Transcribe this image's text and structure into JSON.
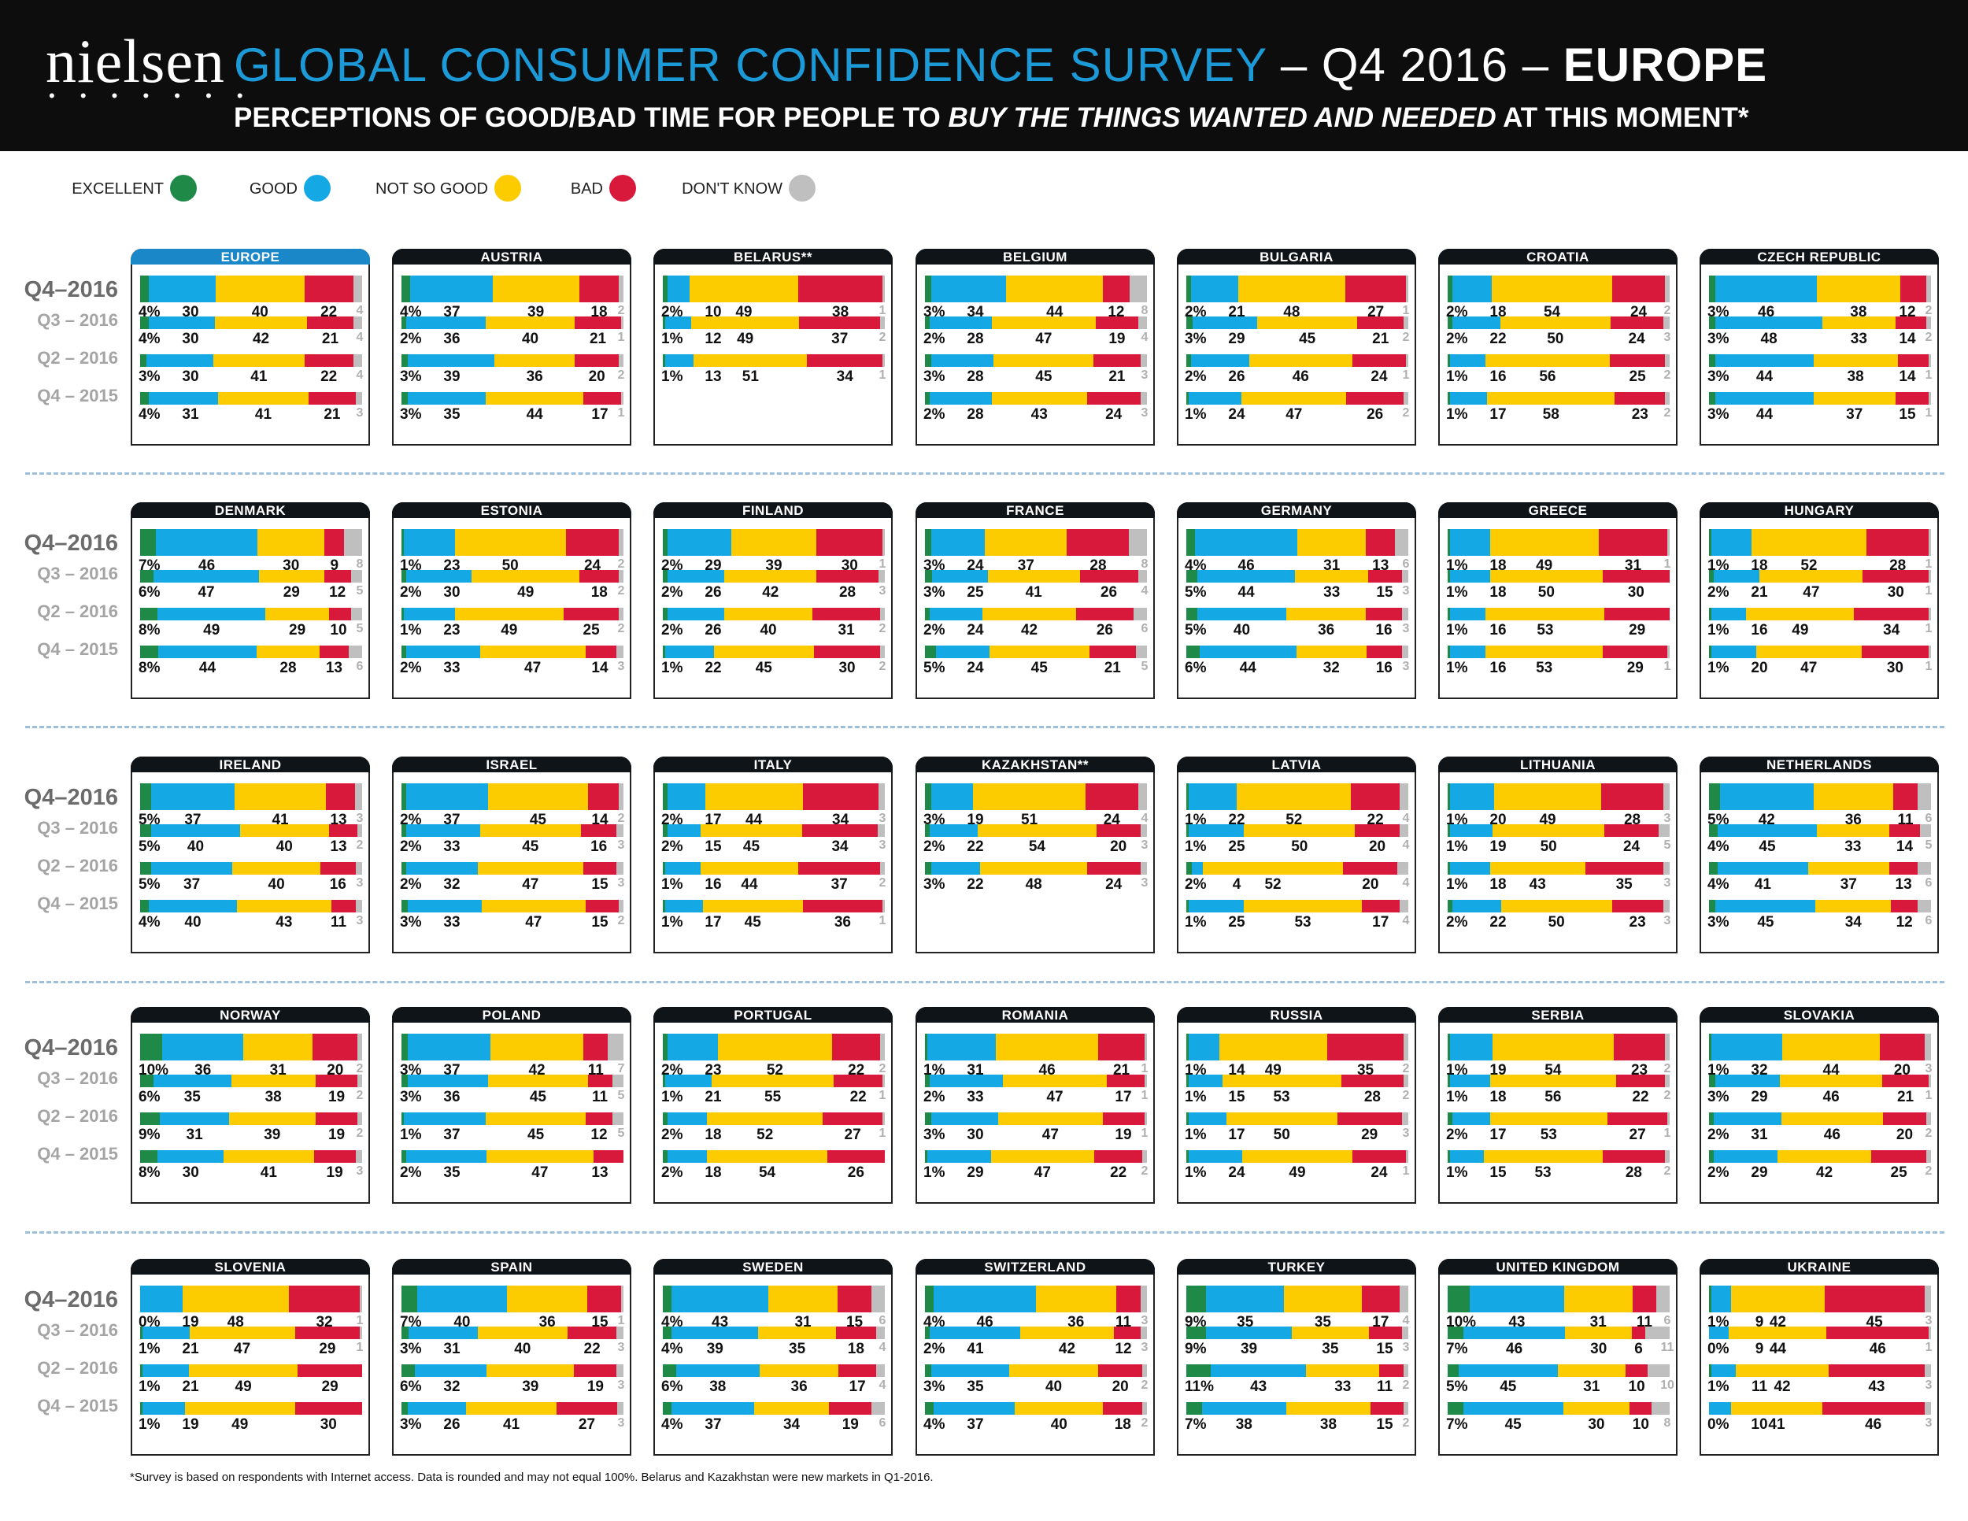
{
  "header": {
    "logo": "nielsen",
    "logo_dots": "• • • • • • •",
    "title_blue": "GLOBAL CONSUMER CONFIDENCE SURVEY",
    "title_mid": " – Q4 2016 – ",
    "title_bold": "EUROPE",
    "subtitle_a": "PERCEPTIONS OF GOOD/BAD TIME FOR PEOPLE TO ",
    "subtitle_italic": "BUY THE THINGS WANTED AND NEEDED",
    "subtitle_b": " AT THIS MOMENT*"
  },
  "legend": [
    {
      "label": "EXCELLENT",
      "color": "#1f8a48"
    },
    {
      "label": "GOOD",
      "color": "#14a8e4"
    },
    {
      "label": "NOT SO GOOD",
      "color": "#fccb00"
    },
    {
      "label": "BAD",
      "color": "#d8193c"
    },
    {
      "label": "DON'T KNOW",
      "color": "#bfbfbf"
    }
  ],
  "period_labels": [
    "Q4–2016",
    "Q3 – 2016",
    "Q2 – 2016",
    "Q4 – 2015"
  ],
  "footnote": "*Survey is based on respondents with Internet access. Data is rounded and may not equal 100%. Belarus and Kazakhstan were new markets in Q1-2016.",
  "chart_data": {
    "type": "bar",
    "subtype": "stacked-horizontal-small-multiples",
    "title": "GLOBAL CONSUMER CONFIDENCE SURVEY – Q4 2016 – EUROPE",
    "subtitle": "PERCEPTIONS OF GOOD/BAD TIME FOR PEOPLE TO BUY THE THINGS WANTED AND NEEDED AT THIS MOMENT*",
    "series_names": [
      "EXCELLENT",
      "GOOD",
      "NOT SO GOOD",
      "BAD",
      "DON'T KNOW"
    ],
    "periods": [
      "Q4–2016",
      "Q3 – 2016",
      "Q2 – 2016",
      "Q4 – 2015"
    ],
    "unit": "%",
    "panels": [
      {
        "name": "EUROPE",
        "highlight": true,
        "rows": [
          [
            4,
            30,
            40,
            22,
            4
          ],
          [
            4,
            30,
            42,
            21,
            4
          ],
          [
            3,
            30,
            41,
            22,
            4
          ],
          [
            4,
            31,
            41,
            21,
            3
          ]
        ]
      },
      {
        "name": "AUSTRIA",
        "rows": [
          [
            4,
            37,
            39,
            18,
            2
          ],
          [
            2,
            36,
            40,
            21,
            1
          ],
          [
            3,
            39,
            36,
            20,
            2
          ],
          [
            3,
            35,
            44,
            17,
            1
          ]
        ]
      },
      {
        "name": "BELARUS**",
        "rows": [
          [
            2,
            10,
            49,
            38,
            1
          ],
          [
            1,
            12,
            49,
            37,
            2
          ],
          [
            1,
            13,
            51,
            34,
            1
          ]
        ]
      },
      {
        "name": "BELGIUM",
        "rows": [
          [
            3,
            34,
            44,
            12,
            8
          ],
          [
            2,
            28,
            47,
            19,
            4
          ],
          [
            3,
            28,
            45,
            21,
            3
          ],
          [
            2,
            28,
            43,
            24,
            3
          ]
        ]
      },
      {
        "name": "BULGARIA",
        "rows": [
          [
            2,
            21,
            48,
            27,
            1
          ],
          [
            3,
            29,
            45,
            21,
            2
          ],
          [
            2,
            26,
            46,
            24,
            1
          ],
          [
            1,
            24,
            47,
            26,
            2
          ]
        ]
      },
      {
        "name": "CROATIA",
        "rows": [
          [
            2,
            18,
            54,
            24,
            2
          ],
          [
            2,
            22,
            50,
            24,
            3
          ],
          [
            1,
            16,
            56,
            25,
            2
          ],
          [
            1,
            17,
            58,
            23,
            2
          ]
        ]
      },
      {
        "name": "CZECH REPUBLIC",
        "rows": [
          [
            3,
            46,
            38,
            12,
            2
          ],
          [
            3,
            48,
            33,
            14,
            2
          ],
          [
            3,
            44,
            38,
            14,
            1
          ],
          [
            3,
            44,
            37,
            15,
            1
          ]
        ]
      },
      {
        "name": "DENMARK",
        "rows": [
          [
            7,
            46,
            30,
            9,
            8
          ],
          [
            6,
            47,
            29,
            12,
            5
          ],
          [
            8,
            49,
            29,
            10,
            5
          ],
          [
            8,
            44,
            28,
            13,
            6
          ]
        ]
      },
      {
        "name": "ESTONIA",
        "rows": [
          [
            1,
            23,
            50,
            24,
            2
          ],
          [
            2,
            30,
            49,
            18,
            2
          ],
          [
            1,
            23,
            49,
            25,
            2
          ],
          [
            2,
            33,
            47,
            14,
            3
          ]
        ]
      },
      {
        "name": "FINLAND",
        "rows": [
          [
            2,
            29,
            39,
            30,
            1
          ],
          [
            2,
            26,
            42,
            28,
            3
          ],
          [
            2,
            26,
            40,
            31,
            2
          ],
          [
            1,
            22,
            45,
            30,
            2
          ]
        ]
      },
      {
        "name": "FRANCE",
        "rows": [
          [
            3,
            24,
            37,
            28,
            8
          ],
          [
            3,
            25,
            41,
            26,
            4
          ],
          [
            2,
            24,
            42,
            26,
            6
          ],
          [
            5,
            24,
            45,
            21,
            5
          ]
        ]
      },
      {
        "name": "GERMANY",
        "rows": [
          [
            4,
            46,
            31,
            13,
            6
          ],
          [
            5,
            44,
            33,
            15,
            3
          ],
          [
            5,
            40,
            36,
            16,
            3
          ],
          [
            6,
            44,
            32,
            16,
            3
          ]
        ]
      },
      {
        "name": "GREECE",
        "rows": [
          [
            1,
            18,
            49,
            31,
            1
          ],
          [
            1,
            18,
            50,
            30,
            0
          ],
          [
            1,
            16,
            53,
            29,
            0
          ],
          [
            1,
            16,
            53,
            29,
            1
          ]
        ]
      },
      {
        "name": "HUNGARY",
        "rows": [
          [
            1,
            18,
            52,
            28,
            1
          ],
          [
            2,
            21,
            47,
            30,
            1
          ],
          [
            1,
            16,
            49,
            34,
            1
          ],
          [
            1,
            20,
            47,
            30,
            1
          ]
        ]
      },
      {
        "name": "IRELAND",
        "rows": [
          [
            5,
            37,
            41,
            13,
            3
          ],
          [
            5,
            40,
            40,
            13,
            2
          ],
          [
            5,
            37,
            40,
            16,
            3
          ],
          [
            4,
            40,
            43,
            11,
            3
          ]
        ]
      },
      {
        "name": "ISRAEL",
        "rows": [
          [
            2,
            37,
            45,
            14,
            2
          ],
          [
            2,
            33,
            45,
            16,
            3
          ],
          [
            2,
            32,
            47,
            15,
            3
          ],
          [
            3,
            33,
            47,
            15,
            2
          ]
        ]
      },
      {
        "name": "ITALY",
        "rows": [
          [
            2,
            17,
            44,
            34,
            3
          ],
          [
            2,
            15,
            45,
            34,
            3
          ],
          [
            1,
            16,
            44,
            37,
            2
          ],
          [
            1,
            17,
            45,
            36,
            1
          ]
        ]
      },
      {
        "name": "KAZAKHSTAN**",
        "rows": [
          [
            3,
            19,
            51,
            24,
            4
          ],
          [
            2,
            22,
            54,
            20,
            3
          ],
          [
            3,
            22,
            48,
            24,
            3
          ]
        ]
      },
      {
        "name": "LATVIA",
        "rows": [
          [
            1,
            22,
            52,
            22,
            4
          ],
          [
            1,
            25,
            50,
            20,
            4
          ],
          [
            2,
            4,
            52,
            20,
            4
          ],
          [
            1,
            25,
            53,
            17,
            4
          ]
        ]
      },
      {
        "name": "LITHUANIA",
        "rows": [
          [
            1,
            20,
            49,
            28,
            3
          ],
          [
            1,
            19,
            50,
            24,
            5
          ],
          [
            1,
            18,
            43,
            35,
            3
          ],
          [
            2,
            22,
            50,
            23,
            3
          ]
        ]
      },
      {
        "name": "NETHERLANDS",
        "rows": [
          [
            5,
            42,
            36,
            11,
            6
          ],
          [
            4,
            45,
            33,
            14,
            5
          ],
          [
            4,
            41,
            37,
            13,
            6
          ],
          [
            3,
            45,
            34,
            12,
            6
          ]
        ]
      },
      {
        "name": "NORWAY",
        "rows": [
          [
            10,
            36,
            31,
            20,
            2
          ],
          [
            6,
            35,
            38,
            19,
            2
          ],
          [
            9,
            31,
            39,
            19,
            2
          ],
          [
            8,
            30,
            41,
            19,
            3
          ]
        ]
      },
      {
        "name": "POLAND",
        "rows": [
          [
            3,
            37,
            42,
            11,
            7
          ],
          [
            3,
            36,
            45,
            11,
            5
          ],
          [
            1,
            37,
            45,
            12,
            5
          ],
          [
            2,
            35,
            47,
            13,
            0
          ]
        ]
      },
      {
        "name": "PORTUGAL",
        "rows": [
          [
            2,
            23,
            52,
            22,
            2
          ],
          [
            1,
            21,
            55,
            22,
            1
          ],
          [
            2,
            18,
            52,
            27,
            1
          ],
          [
            2,
            18,
            54,
            26,
            0
          ]
        ]
      },
      {
        "name": "ROMANIA",
        "rows": [
          [
            1,
            31,
            46,
            21,
            1
          ],
          [
            2,
            33,
            47,
            17,
            1
          ],
          [
            3,
            30,
            47,
            19,
            1
          ],
          [
            1,
            29,
            47,
            22,
            2
          ]
        ]
      },
      {
        "name": "RUSSIA",
        "rows": [
          [
            1,
            14,
            49,
            35,
            2
          ],
          [
            1,
            15,
            53,
            28,
            2
          ],
          [
            1,
            17,
            50,
            29,
            3
          ],
          [
            1,
            24,
            49,
            24,
            1
          ]
        ]
      },
      {
        "name": "SERBIA",
        "rows": [
          [
            1,
            19,
            54,
            23,
            2
          ],
          [
            1,
            18,
            56,
            22,
            2
          ],
          [
            2,
            17,
            53,
            27,
            1
          ],
          [
            1,
            15,
            53,
            28,
            2
          ]
        ]
      },
      {
        "name": "SLOVAKIA",
        "rows": [
          [
            1,
            32,
            44,
            20,
            3
          ],
          [
            3,
            29,
            46,
            21,
            1
          ],
          [
            2,
            31,
            46,
            20,
            2
          ],
          [
            2,
            29,
            42,
            25,
            2
          ]
        ]
      },
      {
        "name": "SLOVENIA",
        "rows": [
          [
            0,
            19,
            48,
            32,
            1
          ],
          [
            1,
            21,
            47,
            29,
            1
          ],
          [
            1,
            21,
            49,
            29,
            0
          ],
          [
            1,
            19,
            49,
            30,
            0
          ]
        ]
      },
      {
        "name": "SPAIN",
        "rows": [
          [
            7,
            40,
            36,
            15,
            1
          ],
          [
            3,
            31,
            40,
            22,
            3
          ],
          [
            6,
            32,
            39,
            19,
            3
          ],
          [
            3,
            26,
            41,
            27,
            3
          ]
        ]
      },
      {
        "name": "SWEDEN",
        "rows": [
          [
            4,
            43,
            31,
            15,
            6
          ],
          [
            4,
            39,
            35,
            18,
            4
          ],
          [
            6,
            38,
            36,
            17,
            4
          ],
          [
            4,
            37,
            34,
            19,
            6
          ]
        ]
      },
      {
        "name": "SWITZERLAND",
        "rows": [
          [
            4,
            46,
            36,
            11,
            3
          ],
          [
            2,
            41,
            42,
            12,
            3
          ],
          [
            3,
            35,
            40,
            20,
            2
          ],
          [
            4,
            37,
            40,
            18,
            2
          ]
        ]
      },
      {
        "name": "TURKEY",
        "rows": [
          [
            9,
            35,
            35,
            17,
            4
          ],
          [
            9,
            39,
            35,
            15,
            3
          ],
          [
            11,
            43,
            33,
            11,
            2
          ],
          [
            7,
            38,
            38,
            15,
            2
          ]
        ]
      },
      {
        "name": "UNITED KINGDOM",
        "rows": [
          [
            10,
            43,
            31,
            11,
            6
          ],
          [
            7,
            46,
            30,
            6,
            11
          ],
          [
            5,
            45,
            31,
            10,
            10
          ],
          [
            7,
            45,
            30,
            10,
            8
          ]
        ]
      },
      {
        "name": "UKRAINE",
        "rows": [
          [
            1,
            9,
            42,
            45,
            3
          ],
          [
            0,
            9,
            44,
            46,
            1
          ],
          [
            1,
            11,
            42,
            43,
            3
          ],
          [
            0,
            10,
            41,
            46,
            3
          ]
        ]
      }
    ]
  }
}
